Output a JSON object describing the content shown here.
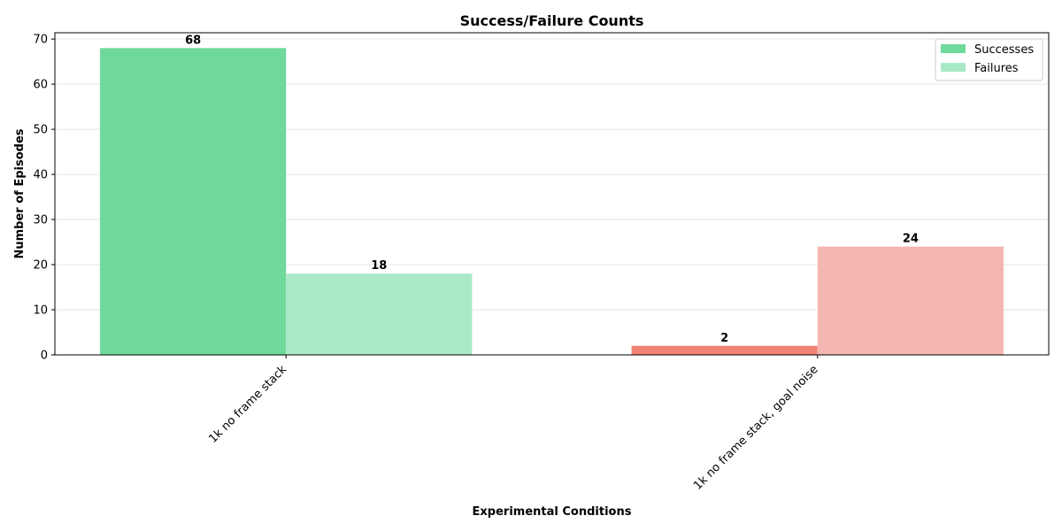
{
  "chart_data": {
    "type": "bar",
    "title": "Success/Failure Counts",
    "xlabel": "Experimental Conditions",
    "ylabel": "Number of Episodes",
    "categories": [
      "1k no frame stack",
      "1k no frame stack, goal noise"
    ],
    "series": [
      {
        "name": "Successes",
        "values": [
          68,
          2
        ],
        "colors": [
          "#6fd99c",
          "#ef8272"
        ]
      },
      {
        "name": "Failures",
        "values": [
          18,
          24
        ],
        "colors": [
          "#aae9c7",
          "#f4b6b0"
        ]
      }
    ],
    "ylim": [
      0,
      71.4
    ],
    "yticks": [
      0,
      10,
      20,
      30,
      40,
      50,
      60,
      70
    ],
    "grid": true,
    "legend_position": "top-right",
    "data_labels": true
  }
}
